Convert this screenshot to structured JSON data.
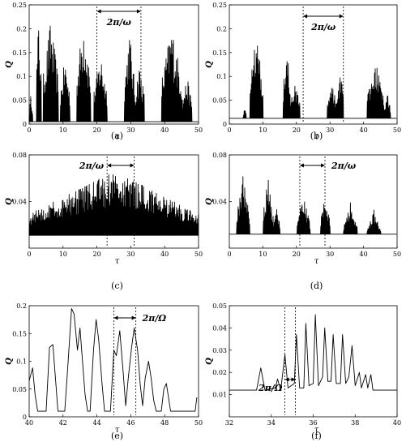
{
  "chart_data": [
    {
      "type": "line",
      "panel_label": "(a)",
      "ylabel": "Q",
      "xlabel": "τ",
      "xlim": [
        0,
        50
      ],
      "ylim": [
        0,
        0.25
      ],
      "xticks": [
        0,
        10,
        20,
        30,
        40,
        50
      ],
      "xtick_labels": [
        "0",
        "10",
        "20",
        "30",
        "40",
        "50"
      ],
      "yticks": [
        0,
        0.05,
        0.1,
        0.15,
        0.2,
        0.25
      ],
      "ytick_labels": [
        "0",
        "0.05",
        "0.1",
        "0.15",
        "0.2",
        "0.25"
      ],
      "series": [
        {
          "waveform": "burst-spikes",
          "baseline": 0.005,
          "bursts": [
            [
              0,
              1,
              0.07
            ],
            [
              2,
              3.5,
              0.23
            ],
            [
              4,
              8.5,
              0.22
            ],
            [
              9,
              12,
              0.14
            ],
            [
              14,
              18,
              0.23
            ],
            [
              19,
              23,
              0.15
            ],
            [
              28,
              31,
              0.2
            ],
            [
              31,
              34,
              0.13
            ],
            [
              39,
              45,
              0.21
            ],
            [
              45,
              48,
              0.1
            ]
          ]
        }
      ],
      "annotation": {
        "text": "2π/ω",
        "x_start": 20,
        "x_end": 33
      }
    },
    {
      "type": "line",
      "panel_label": "(b)",
      "ylabel": "Q",
      "xlabel": "τ",
      "xlim": [
        0,
        50
      ],
      "ylim": [
        0,
        0.25
      ],
      "xticks": [
        0,
        10,
        20,
        30,
        40,
        50
      ],
      "xtick_labels": [
        "0",
        "10",
        "20",
        "30",
        "40",
        "50"
      ],
      "yticks": [
        0,
        0.05,
        0.1,
        0.15,
        0.2,
        0.25
      ],
      "ytick_labels": [
        "0",
        "0.05",
        "0.1",
        "0.15",
        "0.2",
        "0.25"
      ],
      "series": [
        {
          "waveform": "burst-spikes",
          "baseline": 0.012,
          "bursts": [
            [
              4,
              5,
              0.04
            ],
            [
              6,
              10,
              0.2
            ],
            [
              16,
              18,
              0.18
            ],
            [
              18,
              21,
              0.09
            ],
            [
              29,
              32,
              0.09
            ],
            [
              32,
              34,
              0.12
            ],
            [
              41,
              46,
              0.14
            ],
            [
              46,
              48,
              0.07
            ]
          ]
        }
      ],
      "annotation": {
        "text": "2π/ω",
        "x_start": 22,
        "x_end": 34
      }
    },
    {
      "type": "line",
      "panel_label": "(c)",
      "ylabel": "Q",
      "xlabel": "τ",
      "xlim": [
        0,
        50
      ],
      "ylim": [
        0,
        0.08
      ],
      "xticks": [
        0,
        10,
        20,
        30,
        40,
        50
      ],
      "xtick_labels": [
        "0",
        "10",
        "20",
        "30",
        "40",
        "50"
      ],
      "yticks": [
        0.04,
        0.08
      ],
      "ytick_labels": [
        "0.04",
        "0.08"
      ],
      "series": [
        {
          "waveform": "burst-spikes",
          "baseline": 0.011,
          "bursts": [
            [
              0,
              50,
              0.066
            ]
          ]
        }
      ],
      "annotation": {
        "text": "2π/ω",
        "x_start": 23,
        "x_end": 31
      }
    },
    {
      "type": "line",
      "panel_label": "(d)",
      "ylabel": "Q",
      "xlabel": "τ",
      "xlim": [
        0,
        50
      ],
      "ylim": [
        0,
        0.08
      ],
      "xticks": [
        0,
        10,
        20,
        30,
        40,
        50
      ],
      "xtick_labels": [
        "0",
        "10",
        "20",
        "30",
        "40",
        "50"
      ],
      "yticks": [
        0.04,
        0.08
      ],
      "ytick_labels": [
        "0.04",
        "0.08"
      ],
      "series": [
        {
          "waveform": "burst-spikes",
          "baseline": 0.012,
          "bursts": [
            [
              2,
              6,
              0.064
            ],
            [
              10,
              13,
              0.064
            ],
            [
              13,
              15,
              0.04
            ],
            [
              20,
              24,
              0.046
            ],
            [
              27,
              30,
              0.047
            ],
            [
              34,
              38,
              0.04
            ],
            [
              41,
              45,
              0.034
            ]
          ]
        }
      ],
      "annotation": {
        "text": "2π/ω",
        "x_start": 21,
        "x_end": 28.5
      }
    },
    {
      "type": "line",
      "panel_label": "(e)",
      "ylabel": "Q",
      "xlabel": "τ",
      "xlim": [
        40,
        50
      ],
      "ylim": [
        0,
        0.2
      ],
      "xticks": [
        40,
        42,
        44,
        46,
        48,
        50
      ],
      "xtick_labels": [
        "40",
        "42",
        "44",
        "46",
        "48",
        "50"
      ],
      "yticks": [
        0,
        0.05,
        0.1,
        0.15,
        0.2
      ],
      "ytick_labels": [
        "0",
        "0.05",
        "0.1",
        "0.15",
        "0.2"
      ],
      "series": [
        {
          "points": [
            [
              40,
              0.065
            ],
            [
              40.2,
              0.088
            ],
            [
              40.35,
              0.04
            ],
            [
              40.5,
              0.01
            ],
            [
              41.0,
              0.01
            ],
            [
              41.2,
              0.125
            ],
            [
              41.4,
              0.13
            ],
            [
              41.55,
              0.07
            ],
            [
              41.7,
              0.01
            ],
            [
              42.1,
              0.01
            ],
            [
              42.3,
              0.1
            ],
            [
              42.5,
              0.195
            ],
            [
              42.65,
              0.185
            ],
            [
              42.85,
              0.12
            ],
            [
              43.0,
              0.16
            ],
            [
              43.15,
              0.1
            ],
            [
              43.3,
              0.04
            ],
            [
              43.45,
              0.01
            ],
            [
              43.6,
              0.01
            ],
            [
              43.8,
              0.12
            ],
            [
              43.95,
              0.175
            ],
            [
              44.1,
              0.14
            ],
            [
              44.3,
              0.06
            ],
            [
              44.45,
              0.01
            ],
            [
              44.8,
              0.01
            ],
            [
              45.0,
              0.12
            ],
            [
              45.15,
              0.11
            ],
            [
              45.35,
              0.155
            ],
            [
              45.55,
              0.08
            ],
            [
              45.7,
              0.02
            ],
            [
              45.85,
              0.07
            ],
            [
              46.05,
              0.125
            ],
            [
              46.2,
              0.16
            ],
            [
              46.4,
              0.12
            ],
            [
              46.55,
              0.06
            ],
            [
              46.7,
              0.02
            ],
            [
              46.85,
              0.07
            ],
            [
              47.05,
              0.1
            ],
            [
              47.2,
              0.07
            ],
            [
              47.35,
              0.03
            ],
            [
              47.5,
              0.01
            ],
            [
              47.8,
              0.01
            ],
            [
              47.95,
              0.05
            ],
            [
              48.1,
              0.06
            ],
            [
              48.2,
              0.04
            ],
            [
              48.35,
              0.01
            ],
            [
              49.8,
              0.01
            ],
            [
              49.9,
              0.035
            ]
          ]
        }
      ],
      "annotation": {
        "text": "2π/Ω",
        "x_start": 45.0,
        "x_end": 46.3
      }
    },
    {
      "type": "line",
      "panel_label": "(f)",
      "ylabel": "Q",
      "xlabel": "τ",
      "xlim": [
        32,
        40
      ],
      "ylim": [
        0,
        0.05
      ],
      "xticks": [
        32,
        34,
        36,
        38,
        40
      ],
      "xtick_labels": [
        "32",
        "34",
        "36",
        "38",
        "40"
      ],
      "yticks": [
        0.01,
        0.02,
        0.03,
        0.04,
        0.05
      ],
      "ytick_labels": [
        "0.01",
        "0.02",
        "0.03",
        "0.04",
        "0.05"
      ],
      "series": [
        {
          "points": [
            [
              32,
              0.012
            ],
            [
              33.3,
              0.012
            ],
            [
              33.5,
              0.022
            ],
            [
              33.7,
              0.012
            ],
            [
              34.2,
              0.013
            ],
            [
              34.3,
              0.017
            ],
            [
              34.45,
              0.012
            ],
            [
              34.65,
              0.028
            ],
            [
              34.8,
              0.013
            ],
            [
              35.1,
              0.015
            ],
            [
              35.2,
              0.037
            ],
            [
              35.35,
              0.013
            ],
            [
              35.55,
              0.013
            ],
            [
              35.65,
              0.042
            ],
            [
              35.8,
              0.014
            ],
            [
              36.0,
              0.015
            ],
            [
              36.1,
              0.046
            ],
            [
              36.25,
              0.014
            ],
            [
              36.45,
              0.018
            ],
            [
              36.55,
              0.04
            ],
            [
              36.7,
              0.016
            ],
            [
              36.85,
              0.016
            ],
            [
              36.95,
              0.037
            ],
            [
              37.1,
              0.015
            ],
            [
              37.3,
              0.015
            ],
            [
              37.4,
              0.037
            ],
            [
              37.55,
              0.015
            ],
            [
              37.7,
              0.018
            ],
            [
              37.85,
              0.032
            ],
            [
              38.0,
              0.014
            ],
            [
              38.2,
              0.02
            ],
            [
              38.3,
              0.013
            ],
            [
              38.5,
              0.019
            ],
            [
              38.6,
              0.013
            ],
            [
              38.75,
              0.019
            ],
            [
              38.85,
              0.012
            ],
            [
              40,
              0.012
            ]
          ]
        }
      ],
      "annotation": {
        "text": "2π/Ω",
        "x_start": 34.65,
        "x_end": 35.15
      }
    }
  ]
}
